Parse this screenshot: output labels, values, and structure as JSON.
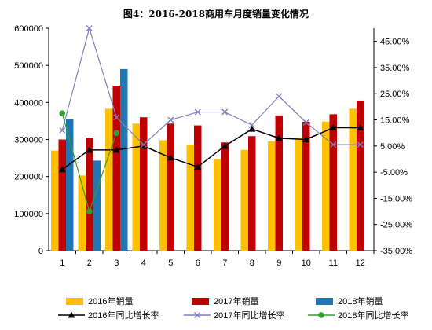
{
  "chart_data": {
    "type": "bar",
    "title": "图4：2016-2018商用车月度销量变化情况",
    "categories": [
      "1",
      "2",
      "3",
      "4",
      "5",
      "6",
      "7",
      "8",
      "9",
      "10",
      "11",
      "12"
    ],
    "bar_series": [
      {
        "name": "2016年销量",
        "color": "#FFC000",
        "values": [
          270000,
          203000,
          383000,
          343000,
          298000,
          286000,
          247000,
          272000,
          295000,
          305000,
          348000,
          383000
        ]
      },
      {
        "name": "2017年销量",
        "color": "#C00000",
        "values": [
          300000,
          305000,
          445000,
          360000,
          343000,
          338000,
          292000,
          309000,
          365000,
          348000,
          368000,
          405000
        ]
      },
      {
        "name": "2018年销量",
        "color": "#1F78B4",
        "values": [
          355000,
          243000,
          490000,
          null,
          null,
          null,
          null,
          null,
          null,
          null,
          null,
          null
        ]
      }
    ],
    "line_series": [
      {
        "name": "2016年同比增长率",
        "color": "#000000",
        "marker": "triangle",
        "values": [
          -0.04,
          0.035,
          0.035,
          0.05,
          0.005,
          -0.03,
          0.05,
          0.115,
          0.08,
          0.075,
          0.12,
          0.12
        ]
      },
      {
        "name": "2017年同比增长率",
        "color": "#7F7FBF",
        "marker": "x",
        "values": [
          0.11,
          0.5,
          0.16,
          0.055,
          0.15,
          0.18,
          0.18,
          0.13,
          0.24,
          0.14,
          0.055,
          0.055
        ]
      },
      {
        "name": "2018年同比增长率",
        "color": "#33A02C",
        "marker": "circle",
        "values": [
          0.175,
          -0.2,
          0.1,
          null,
          null,
          null,
          null,
          null,
          null,
          null,
          null,
          null
        ]
      }
    ],
    "y_left": {
      "min": 0,
      "max": 600000,
      "ticks": [
        "0",
        "100000",
        "200000",
        "300000",
        "400000",
        "500000",
        "600000"
      ]
    },
    "y_right": {
      "min": -0.35,
      "max": 0.5,
      "ticks": [
        "-35.00%",
        "-25.00%",
        "-15.00%",
        "-5.00%",
        "5.00%",
        "15.00%",
        "25.00%",
        "35.00%",
        "45.00%"
      ]
    },
    "grid": false,
    "legend_position": "bottom"
  }
}
